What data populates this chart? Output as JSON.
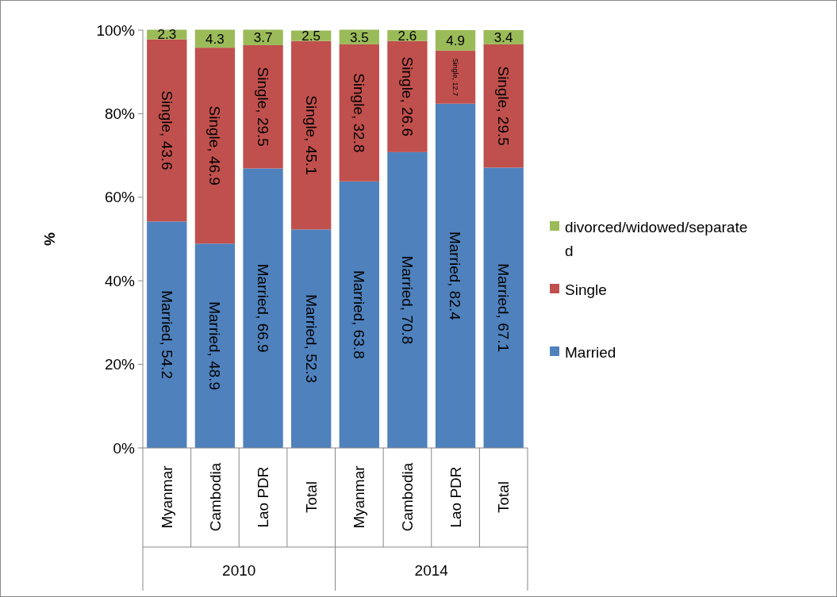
{
  "chart_data": {
    "type": "bar",
    "stacked": true,
    "ylabel": "%",
    "categories": [
      "Myanmar",
      "Cambodia",
      "Lao PDR",
      "Total",
      "Myanmar",
      "Cambodia",
      "Lao PDR",
      "Total"
    ],
    "annotations": [
      "2010",
      "2014"
    ],
    "series": [
      {
        "name": "Married",
        "color": "#4f81bd",
        "values": [
          54.2,
          48.9,
          66.9,
          52.3,
          63.8,
          70.8,
          82.4,
          67.1
        ],
        "value_labels": [
          "Married, 54.2",
          "Married, 48.9",
          "Married, 66.9",
          "Married, 52.3",
          "Married, 63.8",
          "Married, 70.8",
          "Married, 82.4",
          "Married, 67.1"
        ]
      },
      {
        "name": "Single",
        "color": "#c0504d",
        "values": [
          43.6,
          46.9,
          29.5,
          45.1,
          32.8,
          26.6,
          12.7,
          29.5
        ],
        "value_labels": [
          "Single, 43.6",
          "Single, 46.9",
          "Single, 29.5",
          "Single, 45.1",
          "Single, 32.8",
          "Single, 26.6",
          "Single, 12.7",
          "Single, 29.5"
        ]
      },
      {
        "name": "divorced/widowed/separated",
        "color": "#9bbb59",
        "values": [
          2.3,
          4.3,
          3.7,
          2.5,
          3.5,
          2.6,
          4.9,
          3.4
        ],
        "value_labels": [
          "2.3",
          "4.3",
          "3.7",
          "2.5",
          "3.5",
          "2.6",
          "4.9",
          "3.4"
        ]
      }
    ],
    "ylim": [
      0,
      100
    ],
    "yticks": [
      {
        "value": 0,
        "label": "0%"
      },
      {
        "value": 20,
        "label": "20%"
      },
      {
        "value": 40,
        "label": "40%"
      },
      {
        "value": 60,
        "label": "60%"
      },
      {
        "value": 80,
        "label": "80%"
      },
      {
        "value": 100,
        "label": "100%"
      }
    ],
    "legend": "right",
    "grid": false
  }
}
